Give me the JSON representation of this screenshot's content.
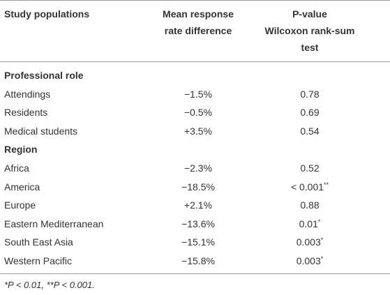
{
  "table": {
    "header": [
      [
        "Study populations"
      ],
      [
        "Mean response",
        "rate difference"
      ],
      [
        "P-value",
        "Wilcoxon rank-sum",
        "test"
      ]
    ],
    "sections": [
      {
        "title": "Professional role",
        "rows": [
          {
            "population": "Attendings",
            "difference": "−1.5%",
            "p_value": "0.78"
          },
          {
            "population": "Residents",
            "difference": "−0.5%",
            "p_value": "0.69"
          },
          {
            "population": "Medical students",
            "difference": "+3.5%",
            "p_value": "0.54"
          }
        ]
      },
      {
        "title": "Region",
        "rows": [
          {
            "population": "Africa",
            "difference": "−2.3%",
            "p_value": "0.52"
          },
          {
            "population": "America",
            "difference": "−18.5%",
            "p_value": "< 0.001",
            "note": "**"
          },
          {
            "population": "Europe",
            "difference": "+2.1%",
            "p_value": "0.88"
          },
          {
            "population": "Eastern Mediterranean",
            "difference": "−13.6%",
            "p_value": "0.01",
            "note": "*"
          },
          {
            "population": "South East Asia",
            "difference": "−15.1%",
            "p_value": "0.003",
            "note": "*"
          },
          {
            "population": "Western Pacific",
            "difference": "−15.8%",
            "p_value": "0.003",
            "note": "*"
          }
        ]
      }
    ],
    "footnote": "*P < 0.01, **P < 0.001."
  }
}
